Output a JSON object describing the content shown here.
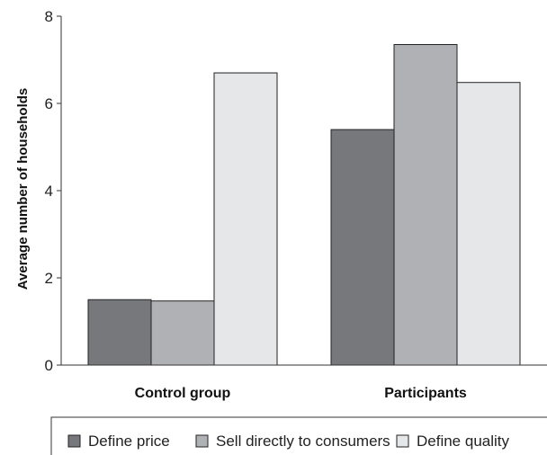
{
  "chart_data": {
    "type": "bar",
    "categories": [
      "Control group",
      "Participants"
    ],
    "series": [
      {
        "name": "Define price",
        "values": [
          1.5,
          5.4
        ],
        "color": "#77787c"
      },
      {
        "name": "Sell directly to consumers",
        "values": [
          1.47,
          7.35
        ],
        "color": "#b0b1b4"
      },
      {
        "name": "Define quality",
        "values": [
          6.7,
          6.48
        ],
        "color": "#e6e7e9"
      }
    ],
    "title": "",
    "xlabel": "",
    "ylabel": "Average number of households",
    "ylim": [
      0,
      8
    ],
    "yticks": [
      0,
      2,
      4,
      6,
      8
    ],
    "grid": false,
    "legend_position": "bottom"
  }
}
